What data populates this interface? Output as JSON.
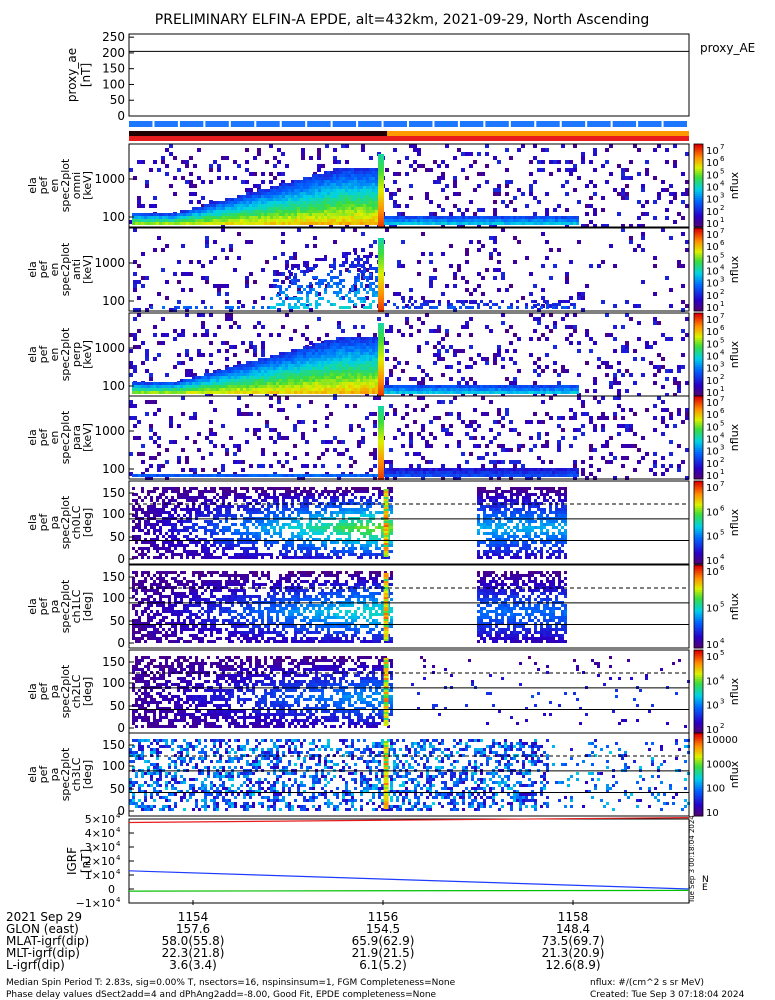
{
  "title": "PRELIMINARY ELFIN-A EPDE, alt=432km, 2021-09-29, North Ascending",
  "colors": {
    "blue_bar": "#1e78ff",
    "dark_red": "#8c0000",
    "red": "#e81c1c",
    "orange": "#ff9900",
    "spec_bg": "#ffffff"
  },
  "chart_data": [
    {
      "type": "line",
      "panel": "proxy_ae",
      "ylabel": [
        "proxy_ae",
        "[nT]"
      ],
      "right_label": "proxy_AE",
      "yticks": [
        "250",
        "200",
        "150",
        "100",
        "50",
        "0"
      ],
      "ylim": [
        0,
        260
      ],
      "series": [
        {
          "x": [
            0,
            1
          ],
          "values": [
            205,
            205
          ]
        }
      ]
    },
    {
      "type": "heatmap",
      "panel": "en_spec2plot_omni",
      "ylabel": [
        "ela",
        "pef",
        "en",
        "spec2plot",
        "omni",
        "[keV]"
      ],
      "yticks": [
        "1000",
        "100"
      ],
      "cbar_ticks": [
        "10",
        "10",
        "10",
        "10",
        "10",
        "10",
        "10"
      ],
      "cbar_exp": [
        "7",
        "6",
        "5",
        "4",
        "3",
        "2",
        "1"
      ],
      "cbar_label": "nflux"
    },
    {
      "type": "heatmap",
      "panel": "en_spec2plot_anti",
      "ylabel": [
        "ela",
        "pef",
        "en",
        "spec2plot",
        "anti",
        "[keV]"
      ],
      "yticks": [
        "1000",
        "100"
      ],
      "cbar_ticks": [
        "10",
        "10",
        "10",
        "10",
        "10",
        "10",
        "10"
      ],
      "cbar_exp": [
        "7",
        "6",
        "5",
        "4",
        "3",
        "2",
        "1"
      ],
      "cbar_label": "nflux"
    },
    {
      "type": "heatmap",
      "panel": "en_spec2plot_perp",
      "ylabel": [
        "ela",
        "pef",
        "en",
        "spec2plot",
        "perp",
        "[keV]"
      ],
      "yticks": [
        "1000",
        "100"
      ],
      "cbar_ticks": [
        "10",
        "10",
        "10",
        "10",
        "10",
        "10",
        "10"
      ],
      "cbar_exp": [
        "7",
        "6",
        "5",
        "4",
        "3",
        "2",
        "1"
      ],
      "cbar_label": "nflux"
    },
    {
      "type": "heatmap",
      "panel": "en_spec2plot_para",
      "ylabel": [
        "ela",
        "pef",
        "en",
        "spec2plot",
        "para",
        "[keV]"
      ],
      "yticks": [
        "1000",
        "100"
      ],
      "cbar_ticks": [
        "10",
        "10",
        "10",
        "10",
        "10",
        "10",
        "10"
      ],
      "cbar_exp": [
        "7",
        "6",
        "5",
        "4",
        "3",
        "2",
        "1"
      ],
      "cbar_label": "nflux"
    },
    {
      "type": "heatmap",
      "panel": "pa_spec2plot_ch0LC",
      "ylabel": [
        "ela",
        "pef",
        "pa",
        "spec2plot",
        "ch0LC",
        "[deg]"
      ],
      "yticks": [
        "150",
        "100",
        "50",
        "0"
      ],
      "cbar_ticks": [
        "10",
        "10",
        "10",
        "10"
      ],
      "cbar_exp": [
        "7",
        "6",
        "5",
        "4"
      ],
      "cbar_label": "nflux"
    },
    {
      "type": "heatmap",
      "panel": "pa_spec2plot_ch1LC",
      "ylabel": [
        "ela",
        "pef",
        "pa",
        "spec2plot",
        "ch1LC",
        "[deg]"
      ],
      "yticks": [
        "150",
        "100",
        "50",
        "0"
      ],
      "cbar_ticks": [
        "10",
        "10",
        "10"
      ],
      "cbar_exp": [
        "6",
        "5",
        "4"
      ],
      "cbar_label": "nflux"
    },
    {
      "type": "heatmap",
      "panel": "pa_spec2plot_ch2LC",
      "ylabel": [
        "ela",
        "pef",
        "pa",
        "spec2plot",
        "ch2LC",
        "[deg]"
      ],
      "yticks": [
        "150",
        "100",
        "50",
        "0"
      ],
      "cbar_ticks": [
        "10",
        "10",
        "10",
        "10"
      ],
      "cbar_exp": [
        "5",
        "4",
        "3",
        "2"
      ],
      "cbar_label": "nflux"
    },
    {
      "type": "heatmap",
      "panel": "pa_spec2plot_ch3LC",
      "ylabel": [
        "ela",
        "pef",
        "pa",
        "spec2plot",
        "ch3LC",
        "[deg]"
      ],
      "yticks": [
        "150",
        "100",
        "50",
        "0"
      ],
      "cbar_ticks": [
        "10000",
        "1000",
        "100",
        "10"
      ],
      "cbar_exp": [],
      "cbar_label": "nflux"
    },
    {
      "type": "line",
      "panel": "IGRF",
      "ylabel": [
        "IGRF",
        "[nT]"
      ],
      "yticks": [
        "5×10",
        "4×10",
        "3×10",
        "2×10",
        "1×10",
        "0",
        "−1×10"
      ],
      "ytick_exp": "4",
      "ylim": [
        -10000,
        50000
      ],
      "series": [
        {
          "color": "#e81c1c",
          "x": [
            0,
            1
          ],
          "values": [
            47500,
            51000
          ]
        },
        {
          "color": "#1e3cff",
          "x": [
            0,
            1
          ],
          "values": [
            13000,
            0
          ]
        },
        {
          "color": "#00c000",
          "x": [
            0,
            1
          ],
          "values": [
            -1500,
            -1000
          ]
        }
      ],
      "side_letters": [
        "N",
        "E"
      ]
    }
  ],
  "xaxis": {
    "ticks": [
      "1154",
      "1156",
      "1158"
    ],
    "rows": [
      {
        "label": "2021 Sep 29",
        "values": [
          "1154",
          "1156",
          "1158"
        ]
      },
      {
        "label": "GLON (east)",
        "values": [
          "157.6",
          "154.5",
          "148.4"
        ]
      },
      {
        "label": "MLAT-igrf(dip)",
        "values": [
          "58.0(55.8)",
          "65.9(62.9)",
          "73.5(69.7)"
        ]
      },
      {
        "label": "MLT-igrf(dip)",
        "values": [
          "22.3(21.8)",
          "21.9(21.5)",
          "21.3(20.9)"
        ]
      },
      {
        "label": "L-igrf(dip)",
        "values": [
          "3.6(3.4)",
          "6.1(5.2)",
          "12.6(8.9)"
        ]
      }
    ]
  },
  "footer": {
    "line1": "Median Spin Period T: 2.83s, sig=0.00% T, nsectors=16, nspinsinsum=1, FGM Completeness=None",
    "line2": "Phase delay values dSect2add=4 and dPhAng2add=-8.00, Good Fit, EPDE completeness=None",
    "right1": "nflux: #/(cm^2 s sr MeV)",
    "right2": "Created: Tue Sep  3 07:18:04 2024",
    "vertical": "Tue Sep  3 00:18:04 2024"
  }
}
